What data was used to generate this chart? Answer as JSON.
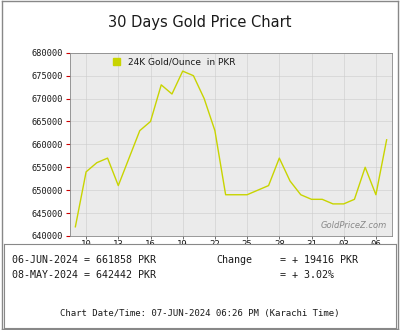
{
  "title": "30 Days Gold Price Chart",
  "legend_label": "24K Gold/Ounce  in PKR",
  "line_color": "#c8d400",
  "background_color": "#ffffff",
  "plot_bg_color": "#ebebeb",
  "watermark": "GoldPriceZ.com",
  "x_values": [
    0,
    1,
    2,
    3,
    4,
    5,
    6,
    7,
    8,
    9,
    10,
    11,
    12,
    13,
    14,
    15,
    16,
    17,
    18,
    19,
    20,
    21,
    22,
    23,
    24,
    25,
    26,
    27,
    28,
    29
  ],
  "y_values": [
    642000,
    654000,
    656000,
    657000,
    651000,
    657000,
    663000,
    665000,
    673000,
    671000,
    676000,
    675000,
    670000,
    663000,
    649000,
    649000,
    649000,
    650000,
    651000,
    657000,
    652000,
    649000,
    648000,
    648000,
    647000,
    647000,
    648000,
    655000,
    649000,
    661000
  ],
  "x_tick_positions": [
    1,
    4,
    7,
    10,
    13,
    16,
    19,
    22,
    25,
    28
  ],
  "x_tick_labels": [
    "10",
    "13",
    "16",
    "19",
    "22",
    "25",
    "28",
    "31",
    "03",
    "06"
  ],
  "ylim": [
    640000,
    680000
  ],
  "ytick_values": [
    640000,
    645000,
    650000,
    655000,
    660000,
    665000,
    670000,
    675000,
    680000
  ],
  "ytick_labels": [
    "640000",
    "645000",
    "650000",
    "655000",
    "660000",
    "665000",
    "670000",
    "675000",
    "680000"
  ],
  "bottom_text1_left": "06-JUN-2024 = 661858 PKR",
  "bottom_text2_left": "08-MAY-2024 = 642442 PKR",
  "bottom_text1_right_label": "Change",
  "bottom_text1_right_value": "= + 19416 PKR",
  "bottom_text2_right_value": "= + 3.02%",
  "footer_text": "Chart Date/Time: 07-JUN-2024 06:26 PM (Karachi Time)",
  "text_color": "#1a1a1a",
  "grid_color": "#cccccc",
  "tick_color_y": "#cc0000",
  "tick_color_x": "#555555"
}
